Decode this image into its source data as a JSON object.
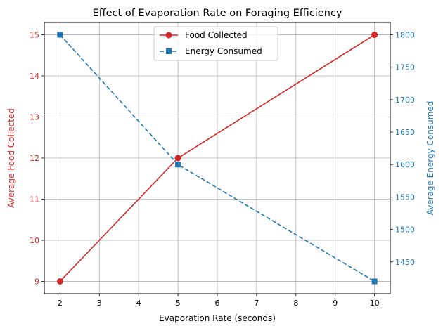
{
  "chart_data": {
    "type": "line",
    "title": "Effect of Evaporation Rate on Foraging Efficiency",
    "xlabel": "Evaporation Rate (seconds)",
    "x": [
      2,
      5,
      10
    ],
    "xlim": [
      1.6,
      10.4
    ],
    "xticks": [
      2,
      3,
      4,
      5,
      6,
      7,
      8,
      9,
      10
    ],
    "grid": true,
    "legend_position": "top-center",
    "series": [
      {
        "name": "Food Collected",
        "axis": "left",
        "values": [
          9,
          12,
          15
        ],
        "color": "#d62728",
        "linestyle": "solid",
        "marker": "circle"
      },
      {
        "name": "Energy Consumed",
        "axis": "right",
        "values": [
          1800,
          1600,
          1420
        ],
        "color": "#1f77b4",
        "linestyle": "dashed",
        "marker": "square"
      }
    ],
    "y_left": {
      "label": "Average Food Collected",
      "color": "#d62728",
      "lim": [
        8.7,
        15.3
      ],
      "ticks": [
        9,
        10,
        11,
        12,
        13,
        14,
        15
      ]
    },
    "y_right": {
      "label": "Average Energy Consumed",
      "color": "#1f77b4",
      "lim": [
        1401,
        1819
      ],
      "ticks": [
        1450,
        1500,
        1550,
        1600,
        1650,
        1700,
        1750,
        1800
      ]
    }
  }
}
